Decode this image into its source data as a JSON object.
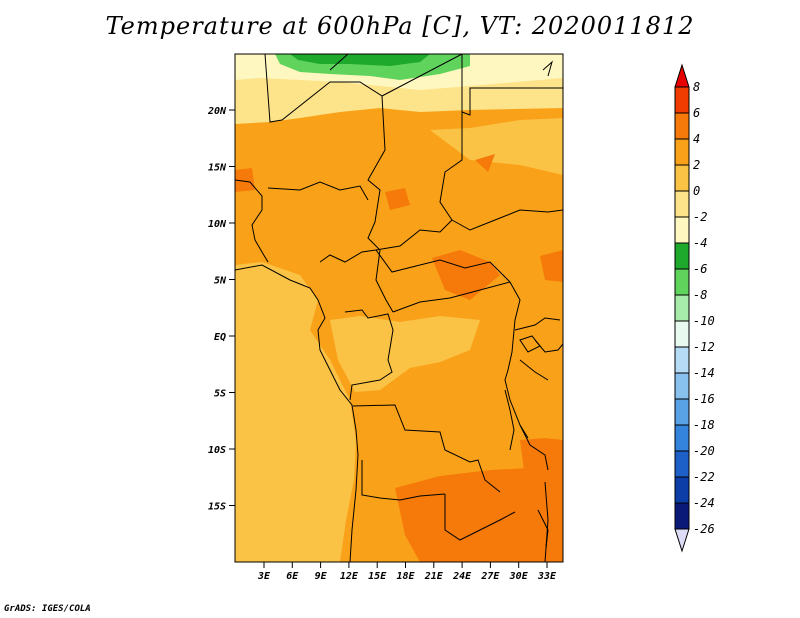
{
  "title": "Temperature at 600hPa [C], VT: 2020011812",
  "credit": "GrADS: IGES/COLA",
  "map": {
    "lat_labels": [
      "20N",
      "15N",
      "10N",
      "5N",
      "EQ",
      "5S",
      "10S",
      "15S"
    ],
    "lon_labels": [
      "3E",
      "6E",
      "9E",
      "12E",
      "15E",
      "18E",
      "21E",
      "24E",
      "27E",
      "30E",
      "33E"
    ]
  },
  "colorbar": {
    "labels": [
      "8",
      "6",
      "4",
      "2",
      "0",
      "-2",
      "-4",
      "-6",
      "-8",
      "-10",
      "-12",
      "-14",
      "-16",
      "-18",
      "-20",
      "-22",
      "-24",
      "-26"
    ],
    "colors": [
      "#e60000",
      "#f03c00",
      "#f57a0a",
      "#f9a219",
      "#fbc346",
      "#fde389",
      "#fff7c0",
      "#1ea82c",
      "#5fd35c",
      "#a8ecac",
      "#e8faef",
      "#b6dcf5",
      "#88c0ee",
      "#5aa2e6",
      "#3483dc",
      "#1c60c8",
      "#0d3ea8",
      "#0a1878",
      "#dcdcf6"
    ]
  }
}
